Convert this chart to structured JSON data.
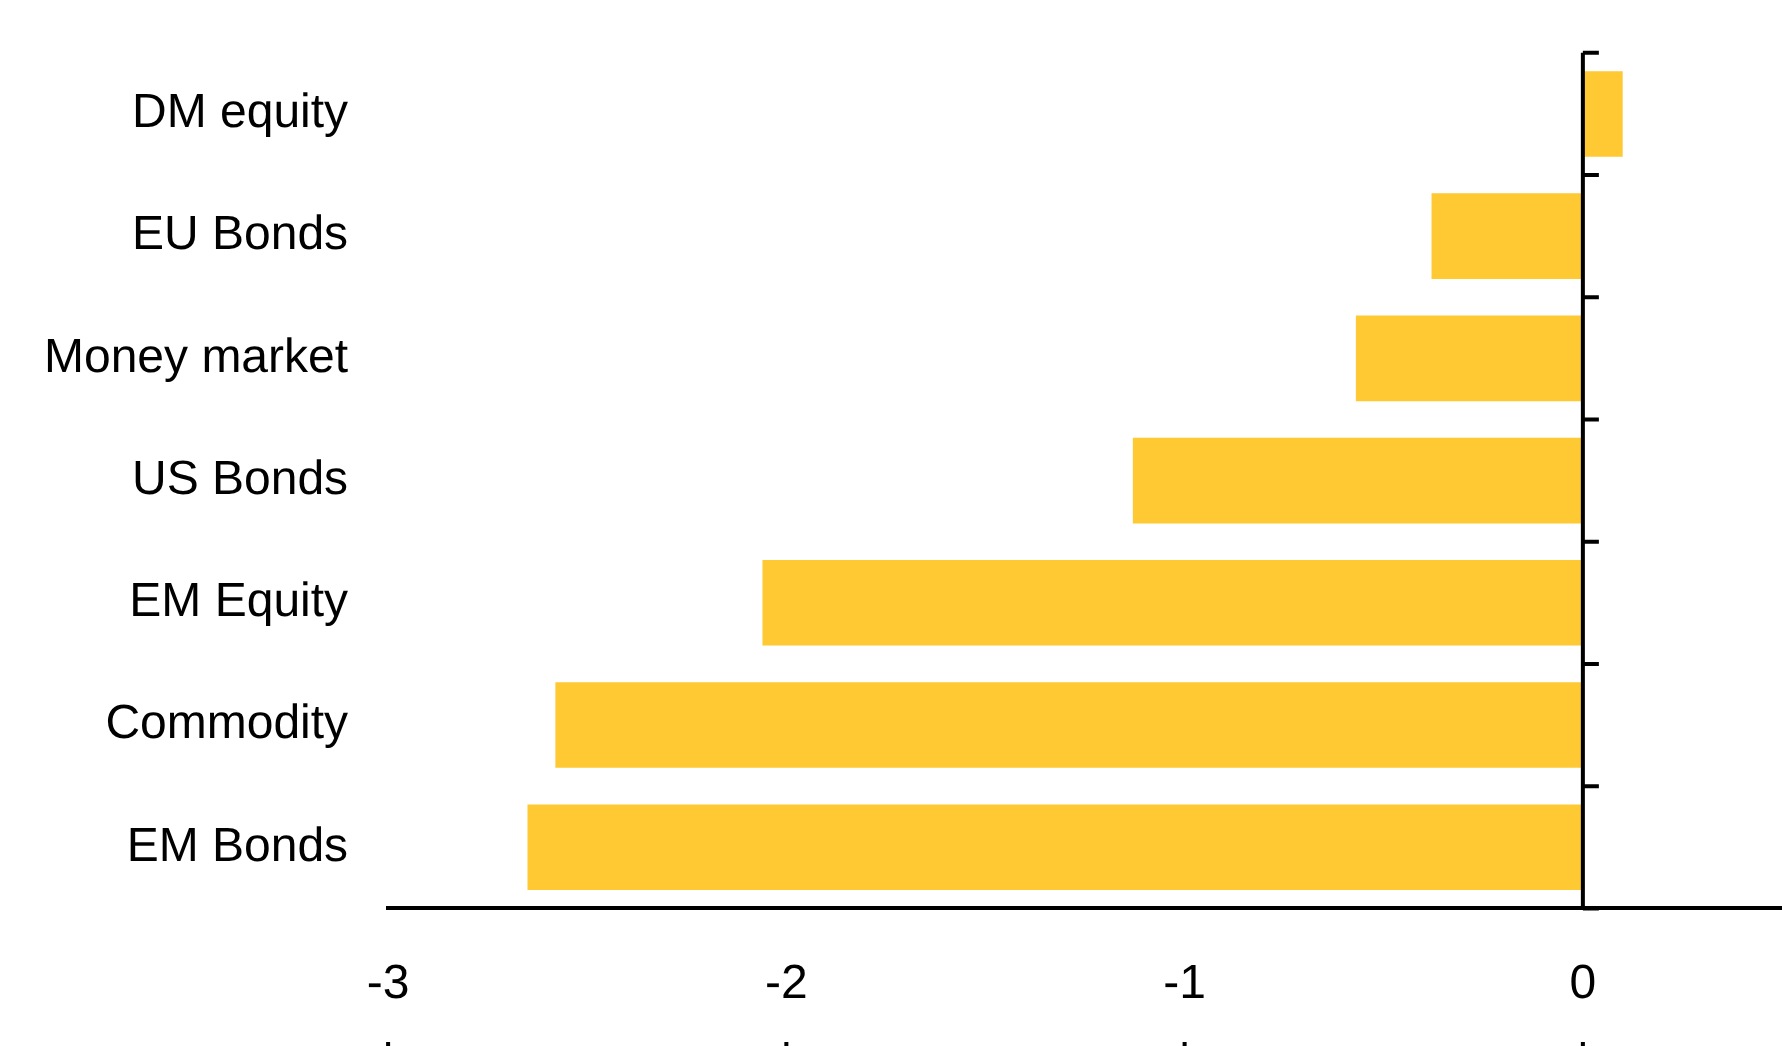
{
  "chart_data": {
    "type": "bar",
    "orientation": "horizontal",
    "categories": [
      "DM equity",
      "EU Bonds",
      "Money market",
      "US Bonds",
      "EM Equity",
      "Commodity",
      "EM Bonds"
    ],
    "values": [
      0.1,
      -0.38,
      -0.57,
      -1.13,
      -2.06,
      -2.58,
      -2.65
    ],
    "color": "#ffc933",
    "xlim": [
      -3,
      0.5
    ],
    "xticks": [
      -3,
      -2,
      -1,
      0
    ],
    "legend": false
  }
}
